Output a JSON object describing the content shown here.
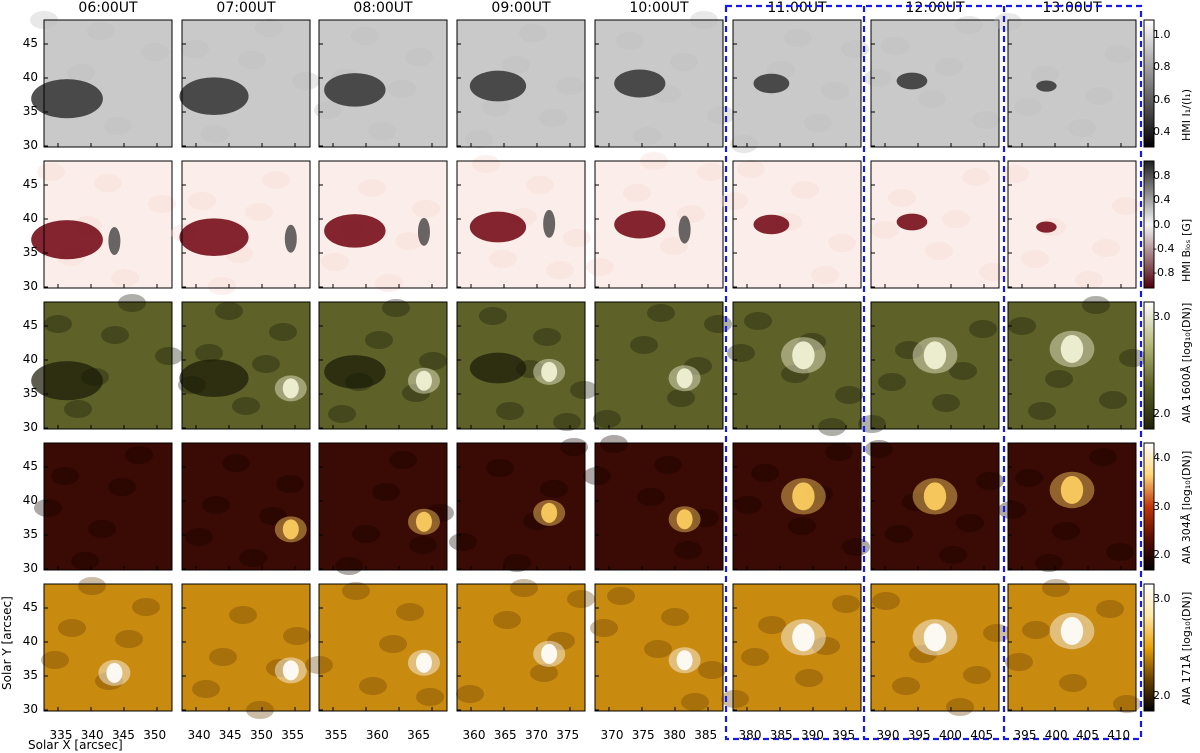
{
  "columns": [
    "06:00UT",
    "07:00UT",
    "08:00UT",
    "09:00UT",
    "10:00UT",
    "11:00UT",
    "12:00UT",
    "13:00UT"
  ],
  "y_ticks": [
    "45",
    "40",
    "35",
    "30"
  ],
  "x_ticks": [
    [
      "335",
      "340",
      "345",
      "350"
    ],
    [
      "340",
      "345",
      "350",
      "355"
    ],
    [
      "355",
      "360",
      "365"
    ],
    [
      "360",
      "365",
      "370",
      "375"
    ],
    [
      "370",
      "375",
      "380",
      "385"
    ],
    [
      "380",
      "385",
      "390",
      "395"
    ],
    [
      "390",
      "395",
      "400",
      "405"
    ],
    [
      "395",
      "400",
      "405",
      "410"
    ]
  ],
  "x_axis_label": "Solar X [arcsec]",
  "y_axis_label": "Solar Y [arcsec]",
  "rows": [
    {
      "cbar_label": "HMI I₁/(I₁)",
      "cbar_ticks": [
        "1.0",
        "0.8",
        "0.6",
        "0.4"
      ],
      "colors": [
        "#000000",
        "#ffffff"
      ]
    },
    {
      "cbar_label": "HMI Bₗₒₛ [G]",
      "cbar_ticks": [
        "0.8",
        "0.4",
        "0.0",
        "-0.4",
        "-0.8"
      ],
      "colors": [
        "#4d0008",
        "#f7f7f7",
        "#202020"
      ]
    },
    {
      "cbar_label": "AIA 1600Å [log₁₀(DN)]",
      "cbar_ticks": [
        "3.0",
        "2.0"
      ],
      "colors": [
        "#1f200a",
        "#5b5f26",
        "#b6b87a",
        "#ffffff"
      ]
    },
    {
      "cbar_label": "AIA 304Å [log₁₀(DN)]",
      "cbar_ticks": [
        "4.0",
        "3.0",
        "2.0"
      ],
      "colors": [
        "#000000",
        "#5a0c00",
        "#c2350a",
        "#ffd77a",
        "#ffffff"
      ]
    },
    {
      "cbar_label": "AIA 171Å [log₁₀(DN)]",
      "cbar_ticks": [
        "3.0",
        "2.0"
      ],
      "colors": [
        "#000000",
        "#6b4200",
        "#e8a10a",
        "#ffe8a8",
        "#ffffff"
      ]
    }
  ]
}
